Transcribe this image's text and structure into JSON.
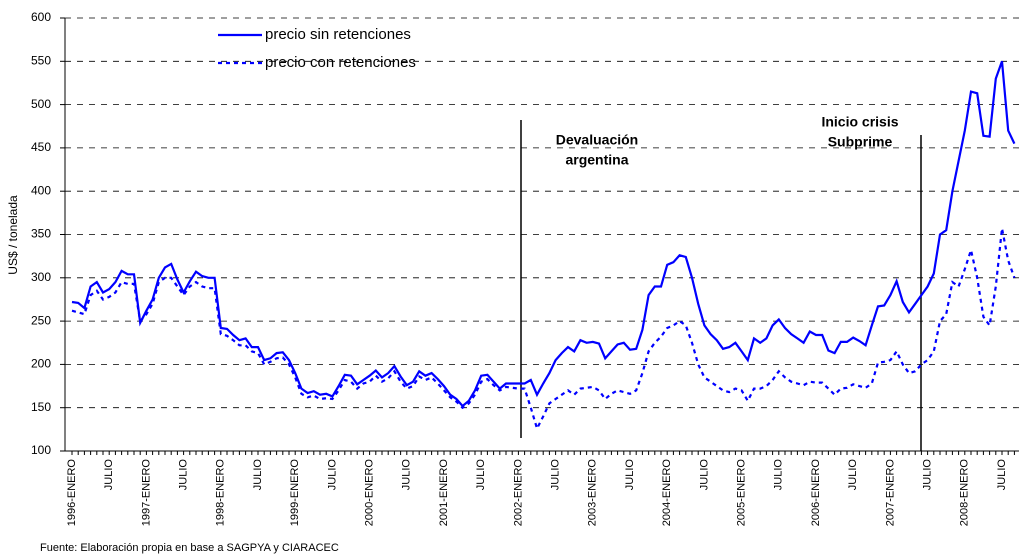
{
  "chart_data": {
    "type": "line",
    "y_label": "US$ / tonelada",
    "source": "Fuente: Elaboración propia en base a SAGPYA y CIARACEC",
    "annotations": [
      "Devaluación",
      "argentina",
      "Inicio crisis",
      "Subprime"
    ],
    "categories": [
      "1996-ENERO",
      null,
      null,
      null,
      null,
      null,
      "JULIO",
      null,
      null,
      null,
      null,
      null,
      "1997-ENERO",
      null,
      null,
      null,
      null,
      null,
      "JULIO",
      null,
      null,
      null,
      null,
      null,
      "1998-ENERO",
      null,
      null,
      null,
      null,
      null,
      "JULIO",
      null,
      null,
      null,
      null,
      null,
      "1999-ENERO",
      null,
      null,
      null,
      null,
      null,
      "JULIO",
      null,
      null,
      null,
      null,
      null,
      "2000-ENERO",
      null,
      null,
      null,
      null,
      null,
      "JULIO",
      null,
      null,
      null,
      null,
      null,
      "2001-ENERO",
      null,
      null,
      null,
      null,
      null,
      "JULIO",
      null,
      null,
      null,
      null,
      null,
      "2002-ENERO",
      null,
      null,
      null,
      null,
      null,
      "JULIO",
      null,
      null,
      null,
      null,
      null,
      "2003-ENERO",
      null,
      null,
      null,
      null,
      null,
      "JULIO",
      null,
      null,
      null,
      null,
      null,
      "2004-ENERO",
      null,
      null,
      null,
      null,
      null,
      "JULIO",
      null,
      null,
      null,
      null,
      null,
      "2005-ENERO",
      null,
      null,
      null,
      null,
      null,
      "JULIO",
      null,
      null,
      null,
      null,
      null,
      "2006-ENERO",
      null,
      null,
      null,
      null,
      null,
      "JULIO",
      null,
      null,
      null,
      null,
      null,
      "2007-ENERO",
      null,
      null,
      null,
      null,
      null,
      "JULIO",
      null,
      null,
      null,
      null,
      null,
      "2008-ENERO",
      null,
      null,
      null,
      null,
      null,
      "JULIO",
      null,
      null
    ],
    "series": [
      {
        "name": "precio sin retenciones",
        "color": "#0000ff",
        "style": "solid",
        "values": [
          272,
          271,
          265,
          290,
          295,
          283,
          287,
          295,
          308,
          304,
          304,
          248,
          262,
          275,
          300,
          312,
          316,
          298,
          283,
          296,
          307,
          302,
          300,
          300,
          242,
          241,
          234,
          228,
          230,
          220,
          220,
          205,
          207,
          213,
          214,
          205,
          190,
          172,
          167,
          169,
          165,
          166,
          163,
          175,
          188,
          187,
          177,
          182,
          187,
          193,
          185,
          190,
          198,
          186,
          176,
          180,
          192,
          187,
          190,
          183,
          175,
          165,
          160,
          152,
          158,
          170,
          187,
          188,
          180,
          172,
          178,
          178,
          178,
          178,
          182,
          165,
          178,
          190,
          205,
          213,
          220,
          215,
          228,
          225,
          226,
          224,
          207,
          215,
          223,
          225,
          217,
          218,
          240,
          280,
          290,
          290,
          315,
          318,
          326,
          324,
          300,
          270,
          245,
          235,
          228,
          218,
          220,
          225,
          215,
          205,
          230,
          225,
          230,
          245,
          252,
          242,
          235,
          230,
          225,
          238,
          234,
          234,
          216,
          213,
          226,
          226,
          231,
          227,
          222,
          245,
          267,
          268,
          280,
          296,
          272,
          260,
          270,
          280,
          290,
          305,
          350,
          355,
          400,
          435,
          470,
          515,
          513,
          464,
          463,
          530,
          550,
          470,
          455
        ]
      },
      {
        "name": "precio con retenciones",
        "color": "#0000ff",
        "style": "dashed",
        "values": [
          262,
          260,
          258,
          280,
          285,
          275,
          278,
          283,
          295,
          293,
          293,
          250,
          258,
          270,
          295,
          300,
          300,
          290,
          280,
          290,
          295,
          290,
          288,
          288,
          235,
          233,
          228,
          222,
          222,
          215,
          213,
          200,
          203,
          207,
          208,
          200,
          185,
          166,
          162,
          164,
          160,
          161,
          160,
          170,
          182,
          180,
          172,
          178,
          180,
          187,
          180,
          184,
          192,
          180,
          172,
          175,
          186,
          182,
          185,
          178,
          170,
          162,
          157,
          150,
          155,
          165,
          180,
          183,
          176,
          170,
          174,
          173,
          172,
          172,
          150,
          126,
          140,
          155,
          160,
          165,
          170,
          165,
          172,
          173,
          174,
          170,
          160,
          166,
          170,
          168,
          166,
          170,
          190,
          215,
          225,
          232,
          242,
          245,
          250,
          245,
          225,
          200,
          185,
          180,
          175,
          170,
          168,
          172,
          170,
          158,
          172,
          172,
          175,
          182,
          192,
          185,
          180,
          178,
          176,
          180,
          179,
          179,
          172,
          165,
          172,
          173,
          177,
          175,
          173,
          178,
          202,
          203,
          205,
          215,
          200,
          190,
          192,
          200,
          205,
          215,
          250,
          258,
          295,
          290,
          310,
          332,
          300,
          255,
          245,
          290,
          357,
          320,
          300
        ]
      }
    ],
    "ylim": [
      100,
      600
    ],
    "yticks": [
      100,
      150,
      200,
      250,
      300,
      350,
      400,
      450,
      500,
      550,
      600
    ],
    "grid": true
  }
}
